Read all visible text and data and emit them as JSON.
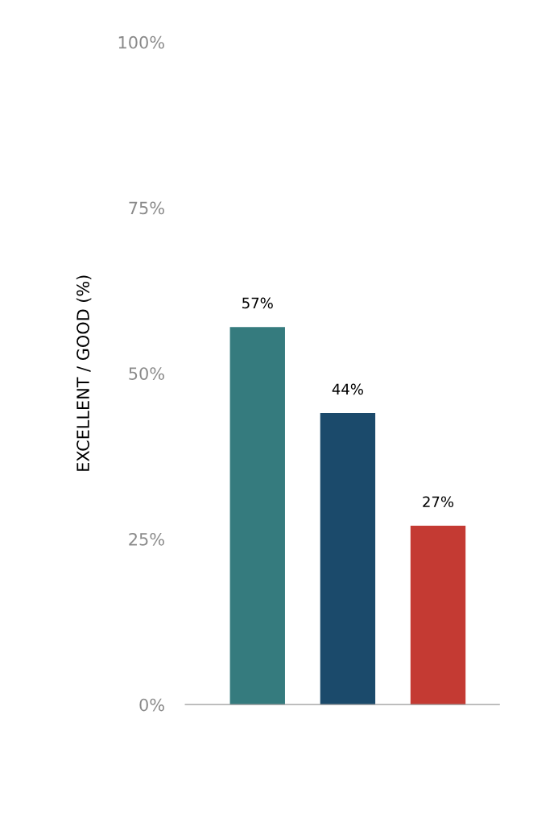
{
  "chart_data": {
    "type": "bar",
    "ylabel": "EXCELLENT / GOOD (%)",
    "categories": [
      null,
      null,
      null
    ],
    "values": [
      57,
      44,
      27
    ],
    "colors": [
      "#357b7e",
      "#1b4a6b",
      "#c43a33"
    ],
    "value_labels": [
      "57%",
      "44%",
      "27%"
    ],
    "ylim": [
      0,
      100
    ],
    "yticks": [
      {
        "value": 0,
        "label": "0%"
      },
      {
        "value": 25,
        "label": "25%"
      },
      {
        "value": 50,
        "label": "50%"
      },
      {
        "value": 75,
        "label": "75%"
      },
      {
        "value": 100,
        "label": "100%"
      }
    ],
    "grid": false,
    "legend": false
  }
}
